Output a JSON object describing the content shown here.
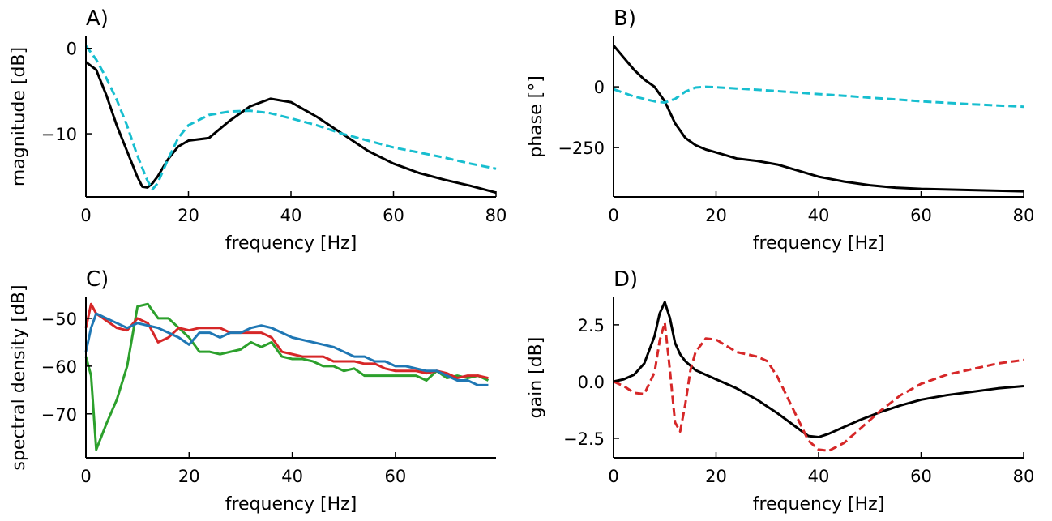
{
  "chart_data": [
    {
      "type": "line",
      "title": "A)",
      "xlabel": "frequency [Hz]",
      "ylabel": "magnitude [dB]",
      "x": [
        0,
        2,
        4,
        6,
        8,
        10,
        11,
        12,
        13,
        14,
        16,
        18,
        20,
        24,
        28,
        32,
        36,
        40,
        45,
        50,
        55,
        60,
        65,
        70,
        75,
        80
      ],
      "series": [
        {
          "color": "#000000",
          "linestyle": "solid",
          "values": [
            -1.6,
            -2.5,
            -5.5,
            -9,
            -12,
            -15,
            -16.2,
            -16.3,
            -15.8,
            -15,
            -13,
            -11.5,
            -10.8,
            -10.5,
            -8.5,
            -6.8,
            -5.9,
            -6.3,
            -8,
            -10,
            -12,
            -13.5,
            -14.6,
            -15.4,
            -16.1,
            -16.9
          ]
        },
        {
          "color": "#17becf",
          "linestyle": "dashed",
          "values": [
            0.3,
            -1.3,
            -3.5,
            -6,
            -9,
            -12.5,
            -14,
            -15.5,
            -16.5,
            -15.8,
            -13,
            -10.5,
            -9,
            -7.8,
            -7.4,
            -7.3,
            -7.6,
            -8.2,
            -9,
            -10,
            -10.8,
            -11.6,
            -12.2,
            -12.8,
            -13.5,
            -14.1
          ]
        }
      ],
      "xlim": [
        0,
        80
      ],
      "xticks": [
        0,
        20,
        40,
        60,
        80
      ],
      "ylim": [
        -17.4,
        1.4
      ],
      "yticks": [
        0,
        {
          "value": -10,
          "label": "−10"
        }
      ]
    },
    {
      "type": "line",
      "title": "B)",
      "xlabel": "frequency [Hz]",
      "ylabel": "phase [°]",
      "x": [
        0,
        2,
        4,
        6,
        8,
        10,
        12,
        14,
        16,
        18,
        20,
        24,
        28,
        32,
        36,
        40,
        45,
        50,
        55,
        60,
        70,
        80
      ],
      "series": [
        {
          "color": "#000000",
          "linestyle": "solid",
          "values": [
            170,
            120,
            70,
            30,
            0,
            -60,
            -150,
            -210,
            -240,
            -258,
            -270,
            -295,
            -305,
            -320,
            -345,
            -370,
            -390,
            -405,
            -415,
            -420,
            -425,
            -430
          ]
        },
        {
          "color": "#17becf",
          "linestyle": "dashed",
          "values": [
            -10,
            -25,
            -40,
            -50,
            -60,
            -65,
            -50,
            -20,
            -3,
            0,
            -2,
            -7,
            -12,
            -18,
            -24,
            -30,
            -37,
            -45,
            -52,
            -60,
            -72,
            -82
          ]
        }
      ],
      "xlim": [
        0,
        80
      ],
      "xticks": [
        0,
        20,
        40,
        60,
        80
      ],
      "ylim": [
        -453,
        207
      ],
      "yticks": [
        0,
        {
          "value": -250,
          "label": "−250"
        }
      ]
    },
    {
      "type": "line",
      "title": "C)",
      "xlabel": "frequency [Hz]",
      "ylabel": "spectral density [dB]",
      "x": [
        0,
        1,
        2,
        4,
        6,
        8,
        10,
        12,
        14,
        16,
        18,
        20,
        22,
        24,
        26,
        28,
        30,
        32,
        34,
        36,
        38,
        40,
        42,
        44,
        46,
        48,
        50,
        52,
        54,
        56,
        58,
        60,
        62,
        64,
        66,
        68,
        70,
        72,
        74,
        76,
        78
      ],
      "series": [
        {
          "color": "#2ca02c",
          "linestyle": "solid",
          "values": [
            -58,
            -62,
            -77.5,
            -72,
            -67,
            -60,
            -47.5,
            -47,
            -50,
            -50,
            -52,
            -54,
            -57,
            -57,
            -57.5,
            -57,
            -56.5,
            -55,
            -56,
            -55,
            -58,
            -58.5,
            -58.5,
            -59,
            -60,
            -60,
            -61,
            -60.5,
            -62,
            -62,
            -62,
            -62,
            -62,
            -62,
            -63,
            -61,
            -62.5,
            -62,
            -62.5,
            -62,
            -63
          ]
        },
        {
          "color": "#d62728",
          "linestyle": "solid",
          "values": [
            -52,
            -47,
            -49,
            -50.5,
            -52,
            -52.5,
            -50,
            -51,
            -55,
            -54,
            -52,
            -52.5,
            -52,
            -52,
            -52,
            -53,
            -53,
            -53,
            -53,
            -54,
            -57,
            -57.5,
            -58,
            -58,
            -58,
            -59,
            -59,
            -59,
            -59.5,
            -59.5,
            -60.5,
            -61,
            -61,
            -61,
            -61.5,
            -61,
            -61.5,
            -62.5,
            -62,
            -62,
            -62.5
          ]
        },
        {
          "color": "#1f77b4",
          "linestyle": "solid",
          "values": [
            -57,
            -52,
            -49,
            -50,
            -51,
            -52,
            -51,
            -51.5,
            -52,
            -53,
            -54,
            -55.5,
            -53,
            -53,
            -54,
            -53,
            -53,
            -52,
            -51.5,
            -52,
            -53,
            -54,
            -54.5,
            -55,
            -55.5,
            -56,
            -57,
            -58,
            -58,
            -59,
            -59,
            -60,
            -60,
            -60.5,
            -61,
            -61,
            -62,
            -63,
            -63,
            -64,
            -64
          ]
        }
      ],
      "xlim": [
        0,
        79.5
      ],
      "xticks": [
        0,
        20,
        40,
        60
      ],
      "ylim": [
        -79.2,
        -45.6
      ],
      "yticks": [
        {
          "value": -50,
          "label": "−50"
        },
        {
          "value": -60,
          "label": "−60"
        },
        {
          "value": -70,
          "label": "−70"
        }
      ]
    },
    {
      "type": "line",
      "title": "D)",
      "xlabel": "frequency [Hz]",
      "ylabel": "gain [dB]",
      "x": [
        0,
        2,
        4,
        6,
        8,
        9,
        10,
        11,
        12,
        13,
        14,
        15,
        16,
        18,
        20,
        24,
        28,
        30,
        32,
        35,
        38,
        40,
        42,
        45,
        48,
        52,
        56,
        60,
        65,
        70,
        75,
        80
      ],
      "series": [
        {
          "color": "#000000",
          "linestyle": "solid",
          "values": [
            0,
            0.1,
            0.3,
            0.8,
            2,
            3,
            3.5,
            2.8,
            1.7,
            1.2,
            0.9,
            0.7,
            0.5,
            0.3,
            0.1,
            -0.3,
            -0.8,
            -1.1,
            -1.4,
            -1.9,
            -2.4,
            -2.45,
            -2.3,
            -2,
            -1.7,
            -1.35,
            -1.05,
            -0.8,
            -0.6,
            -0.45,
            -0.3,
            -0.2
          ]
        },
        {
          "color": "#d62728",
          "linestyle": "dashed",
          "values": [
            0,
            -0.2,
            -0.5,
            -0.55,
            0.4,
            1.8,
            2.6,
            0.5,
            -1.8,
            -2.2,
            -1,
            0.5,
            1.3,
            1.9,
            1.85,
            1.3,
            1.1,
            0.9,
            0.2,
            -1.2,
            -2.6,
            -3.0,
            -3.05,
            -2.7,
            -2.1,
            -1.3,
            -0.6,
            -0.1,
            0.3,
            0.55,
            0.8,
            0.95
          ]
        }
      ],
      "xlim": [
        0,
        80
      ],
      "xticks": [
        0,
        20,
        40,
        60,
        80
      ],
      "ylim": [
        -3.36,
        3.71
      ],
      "yticks": [
        2.5,
        {
          "value": 0,
          "label": "0.0"
        },
        {
          "value": -2.5,
          "label": "−2.5"
        }
      ]
    }
  ]
}
